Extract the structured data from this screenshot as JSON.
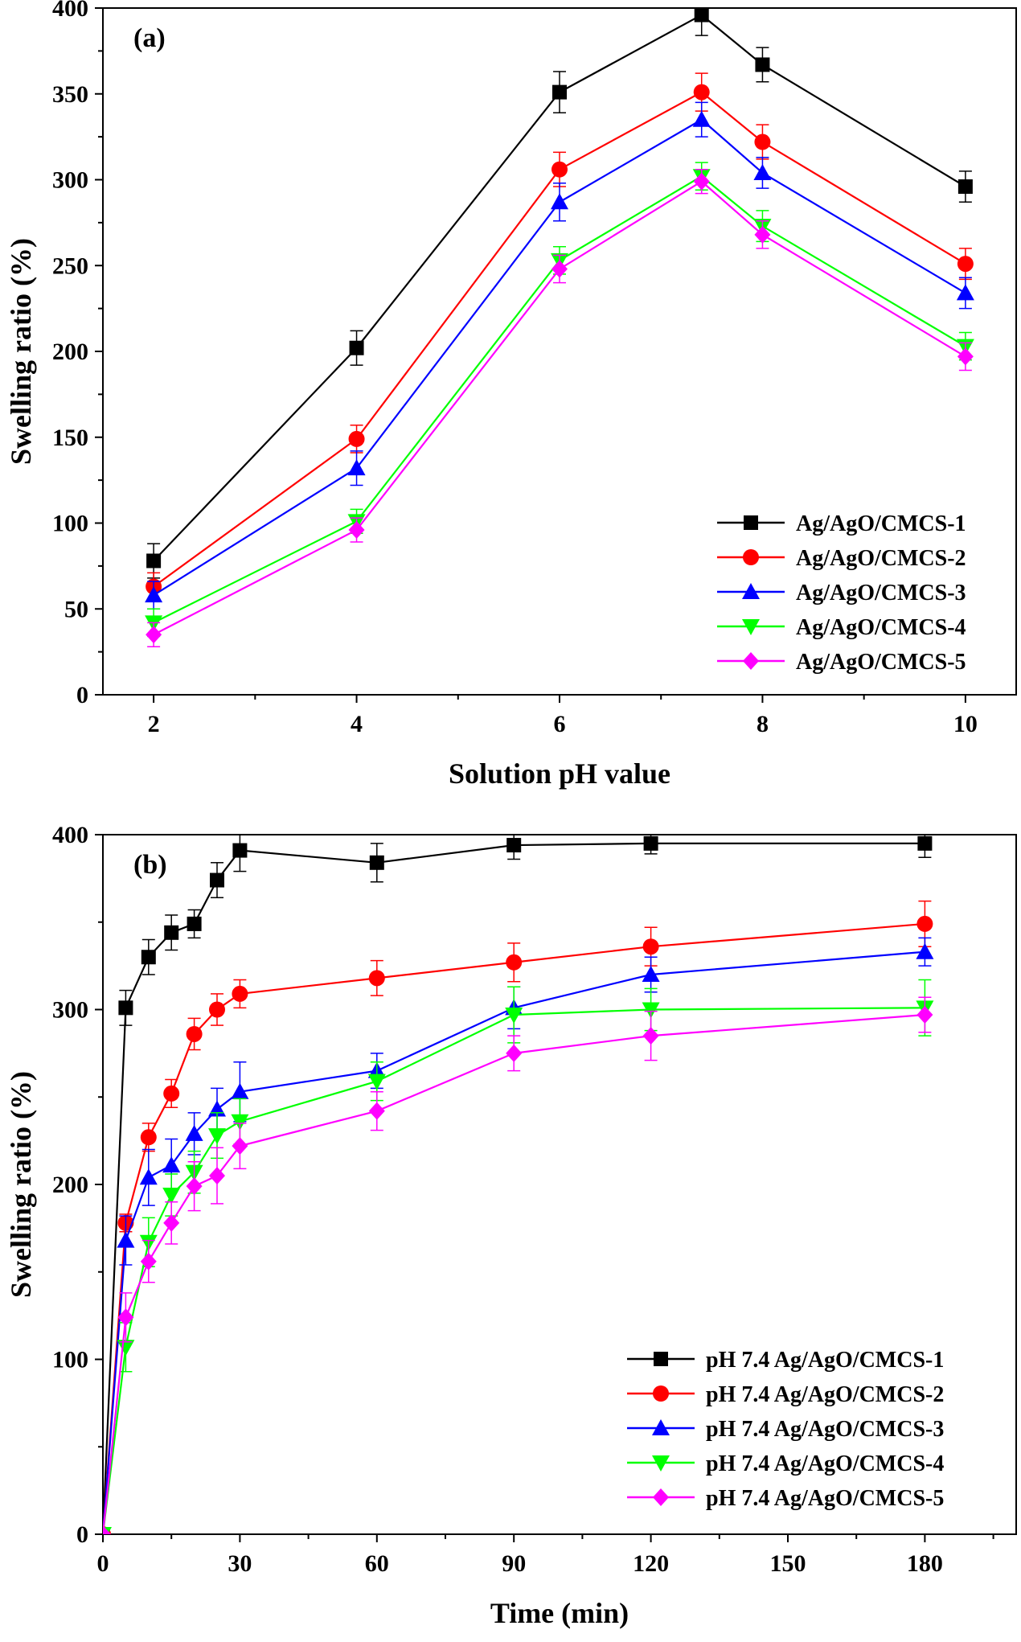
{
  "chart_data": [
    {
      "type": "line",
      "panel_label": "(a)",
      "xlabel": "Solution pH value",
      "ylabel": "Swelling ratio (%)",
      "xlim": [
        1.5,
        10.5
      ],
      "ylim": [
        0,
        400
      ],
      "xticks": [
        2,
        4,
        6,
        8,
        10
      ],
      "yticks": [
        0,
        50,
        100,
        150,
        200,
        250,
        300,
        350,
        400
      ],
      "legend_position": "bottom-right",
      "x": [
        2,
        4,
        6,
        7.4,
        8,
        10
      ],
      "series": [
        {
          "name": "Ag/AgO/CMCS-1",
          "color": "#000000",
          "marker": "square",
          "values": [
            78,
            202,
            351,
            396,
            367,
            296
          ],
          "errors": [
            10,
            10,
            12,
            12,
            10,
            9
          ]
        },
        {
          "name": "Ag/AgO/CMCS-2",
          "color": "#ff0000",
          "marker": "circle",
          "values": [
            63,
            149,
            306,
            351,
            322,
            251
          ],
          "errors": [
            8,
            8,
            10,
            11,
            10,
            9
          ]
        },
        {
          "name": "Ag/AgO/CMCS-3",
          "color": "#0000ff",
          "marker": "triangle-up",
          "values": [
            58,
            132,
            287,
            335,
            304,
            234
          ],
          "errors": [
            8,
            10,
            11,
            10,
            9,
            9
          ]
        },
        {
          "name": "Ag/AgO/CMCS-4",
          "color": "#00ff00",
          "marker": "triangle-down",
          "values": [
            42,
            101,
            253,
            302,
            273,
            203
          ],
          "errors": [
            8,
            7,
            8,
            8,
            9,
            8
          ]
        },
        {
          "name": "Ag/AgO/CMCS-5",
          "color": "#ff00ff",
          "marker": "diamond",
          "values": [
            35,
            96,
            248,
            299,
            268,
            197
          ],
          "errors": [
            7,
            7,
            8,
            7,
            8,
            8
          ]
        }
      ]
    },
    {
      "type": "line",
      "panel_label": "(b)",
      "xlabel": "Time (min)",
      "ylabel": "Swelling ratio (%)",
      "xlim": [
        0,
        200
      ],
      "ylim": [
        0,
        400
      ],
      "xticks": [
        0,
        30,
        60,
        90,
        120,
        150,
        180
      ],
      "yticks": [
        0,
        100,
        200,
        300,
        400
      ],
      "legend_position": "bottom-right",
      "x": [
        0,
        5,
        10,
        15,
        20,
        25,
        30,
        60,
        90,
        120,
        180
      ],
      "series": [
        {
          "name": "pH 7.4  Ag/AgO/CMCS-1",
          "color": "#000000",
          "marker": "square",
          "values": [
            0,
            301,
            330,
            344,
            349,
            374,
            391,
            384,
            394,
            395,
            395
          ],
          "errors": [
            0,
            10,
            10,
            10,
            8,
            10,
            12,
            11,
            8,
            6,
            8
          ]
        },
        {
          "name": "pH 7.4  Ag/AgO/CMCS-2",
          "color": "#ff0000",
          "marker": "circle",
          "values": [
            0,
            178,
            227,
            252,
            286,
            300,
            309,
            318,
            327,
            336,
            349
          ],
          "errors": [
            0,
            5,
            8,
            8,
            9,
            9,
            8,
            10,
            11,
            11,
            13
          ]
        },
        {
          "name": "pH 7.4  Ag/AgO/CMCS-3",
          "color": "#0000ff",
          "marker": "triangle-up",
          "values": [
            0,
            168,
            204,
            211,
            229,
            243,
            253,
            265,
            301,
            320,
            333
          ],
          "errors": [
            0,
            14,
            16,
            15,
            12,
            12,
            17,
            10,
            12,
            10,
            8
          ]
        },
        {
          "name": "pH 7.4  Ag/AgO/CMCS-4",
          "color": "#00ff00",
          "marker": "triangle-down",
          "values": [
            0,
            107,
            167,
            194,
            207,
            228,
            236,
            259,
            297,
            300,
            301
          ],
          "errors": [
            0,
            14,
            14,
            12,
            12,
            13,
            13,
            11,
            16,
            12,
            16
          ]
        },
        {
          "name": "pH 7.4  Ag/AgO/CMCS-5",
          "color": "#ff00ff",
          "marker": "diamond",
          "values": [
            0,
            124,
            156,
            178,
            199,
            205,
            222,
            242,
            275,
            285,
            297
          ],
          "errors": [
            0,
            14,
            12,
            12,
            14,
            16,
            13,
            11,
            10,
            14,
            10
          ]
        }
      ]
    }
  ]
}
